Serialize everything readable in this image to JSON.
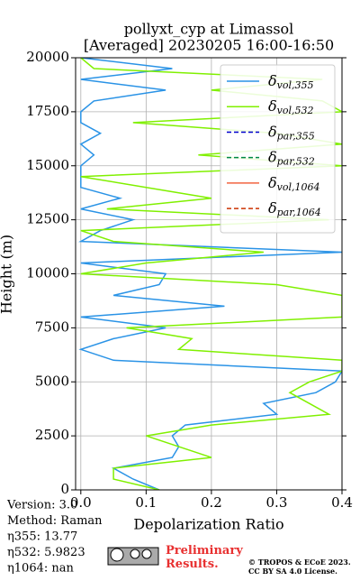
{
  "chart_data": {
    "type": "line",
    "title": [
      "pollyxt_cyp at Limassol",
      "[Averaged] 20230205 16:00-16:50"
    ],
    "xlabel": "Depolarization Ratio",
    "ylabel": "Height (m)",
    "xlim": [
      -0.008,
      0.4
    ],
    "ylim": [
      0,
      20000
    ],
    "xticks": [
      {
        "value": 0,
        "label": "0.0"
      },
      0.1,
      0.2,
      0.3,
      0.4
    ],
    "yticks": [
      0,
      2500,
      5000,
      7500,
      10000,
      12500,
      15000,
      17500,
      20000
    ],
    "grid": true,
    "legend": "upper right",
    "y": [
      0,
      500,
      1000,
      1500,
      2000,
      2500,
      3000,
      3500,
      4000,
      4500,
      5000,
      5500,
      6000,
      6500,
      7000,
      7500,
      8000,
      8500,
      9000,
      9500,
      10000,
      10500,
      11000,
      11500,
      12000,
      12500,
      13000,
      13500,
      14000,
      14500,
      15000,
      15500,
      16000,
      16500,
      17000,
      17500,
      18000,
      18500,
      19000,
      19500,
      20000
    ],
    "series": [
      {
        "name": "δvol,355",
        "color": "#2a93e6",
        "dash": false,
        "values": [
          0.12,
          0.08,
          0.05,
          0.14,
          0.15,
          0.14,
          0.16,
          0.3,
          0.28,
          0.36,
          0.39,
          0.4,
          0.05,
          0.0,
          0.05,
          0.13,
          0.0,
          0.22,
          0.05,
          0.12,
          0.13,
          0.0,
          0.4,
          0.0,
          0.03,
          0.08,
          0.0,
          0.06,
          0.0,
          0.0,
          0.0,
          0.02,
          0.0,
          0.03,
          0.0,
          0.0,
          0.02,
          0.13,
          0.0,
          0.14,
          0.0
        ]
      },
      {
        "name": "δvol,532",
        "color": "#80f000",
        "dash": false,
        "values": [
          0.12,
          0.05,
          0.05,
          0.2,
          0.15,
          0.1,
          0.2,
          0.38,
          0.35,
          0.32,
          0.35,
          0.4,
          0.4,
          0.15,
          0.17,
          0.07,
          0.4,
          0.4,
          0.4,
          0.3,
          0.0,
          0.1,
          0.28,
          0.05,
          0.0,
          0.38,
          0.04,
          0.2,
          0.1,
          0.0,
          0.4,
          0.18,
          0.4,
          0.3,
          0.08,
          0.4,
          0.37,
          0.2,
          0.37,
          0.02,
          0.0
        ]
      },
      {
        "name": "δpar,355",
        "color": "#0000cc",
        "dash": true,
        "values": [
          null,
          null,
          null,
          null,
          null,
          null,
          null,
          null,
          null,
          null,
          null,
          null,
          null,
          null,
          null,
          null,
          null,
          null,
          null,
          null,
          null,
          null,
          null,
          null,
          null,
          null,
          null,
          null,
          null,
          null,
          null,
          null,
          null,
          null,
          null,
          null,
          null,
          null,
          null,
          null,
          null
        ]
      },
      {
        "name": "δpar,532",
        "color": "#008844",
        "dash": true,
        "values": [
          null,
          null,
          null,
          null,
          null,
          null,
          null,
          null,
          null,
          null,
          null,
          null,
          null,
          null,
          null,
          null,
          null,
          null,
          null,
          null,
          null,
          null,
          null,
          null,
          null,
          null,
          null,
          null,
          null,
          null,
          null,
          null,
          null,
          null,
          null,
          null,
          null,
          null,
          null,
          null,
          null
        ]
      },
      {
        "name": "δvol,1064",
        "color": "#f26440",
        "dash": false,
        "values": [
          null,
          null,
          null,
          null,
          null,
          null,
          null,
          null,
          null,
          null,
          null,
          null,
          null,
          null,
          null,
          null,
          null,
          null,
          null,
          null,
          null,
          null,
          null,
          null,
          null,
          null,
          null,
          null,
          null,
          null,
          null,
          null,
          null,
          null,
          null,
          null,
          null,
          null,
          null,
          null,
          null
        ]
      },
      {
        "name": "δpar,1064",
        "color": "#cc3300",
        "dash": true,
        "values": [
          null,
          null,
          null,
          null,
          null,
          null,
          null,
          null,
          null,
          null,
          null,
          null,
          null,
          null,
          null,
          null,
          null,
          null,
          null,
          null,
          null,
          null,
          null,
          null,
          null,
          null,
          null,
          null,
          null,
          null,
          null,
          null,
          null,
          null,
          null,
          null,
          null,
          null,
          null,
          null,
          null
        ]
      }
    ]
  },
  "annotations": [
    "Version: 3.0",
    "Method: Raman",
    "η355:  13.77",
    "η532: 5.9823",
    "η1064:    nan"
  ],
  "footer": {
    "notice": "Preliminary Results.",
    "copyright": [
      "© TROPOS & ECoE 2023.",
      "CC BY SA 4.0 License."
    ]
  }
}
